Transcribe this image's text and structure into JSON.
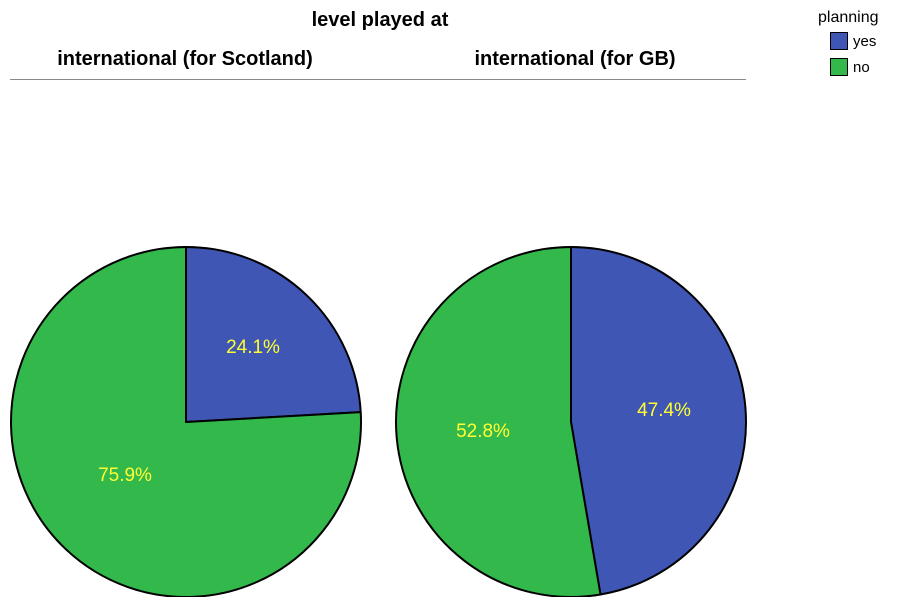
{
  "header": {
    "title": "level played at",
    "panels": [
      "international (for Scotland)",
      "international (for GB)"
    ]
  },
  "legend": {
    "title": "planning",
    "items": [
      {
        "label": "yes",
        "color": "#3f56b4"
      },
      {
        "label": "no",
        "color": "#33b84b"
      }
    ]
  },
  "chart_data": [
    {
      "type": "pie",
      "title": "international (for Scotland)",
      "categories": [
        "yes",
        "no"
      ],
      "values": [
        24.1,
        75.9
      ],
      "labels": [
        "24.1%",
        "75.9%"
      ],
      "colors": [
        "#3f56b4",
        "#33b84b"
      ]
    },
    {
      "type": "pie",
      "title": "international (for GB)",
      "categories": [
        "yes",
        "no"
      ],
      "values": [
        47.4,
        52.8
      ],
      "labels": [
        "47.4%",
        "52.8%"
      ],
      "colors": [
        "#3f56b4",
        "#33b84b"
      ]
    }
  ]
}
